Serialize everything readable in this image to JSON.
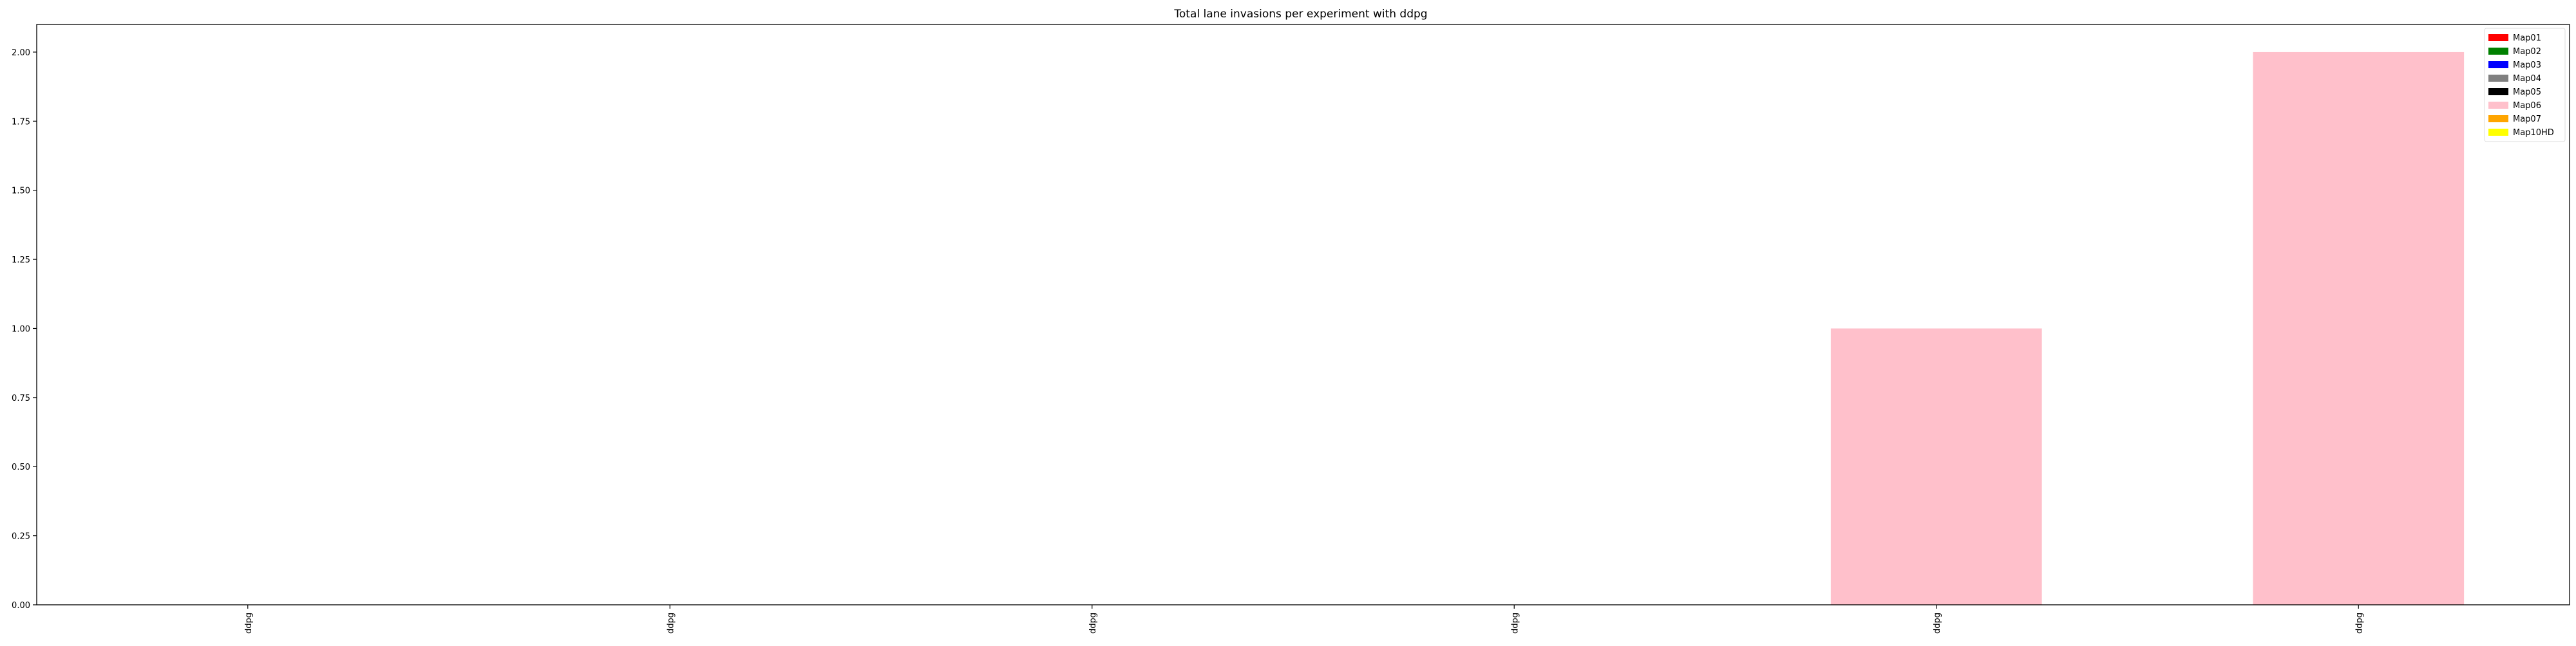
{
  "chart_data": {
    "type": "bar",
    "title": "Total lane invasions per experiment with ddpg",
    "xlabel": "",
    "ylabel": "",
    "categories": [
      "ddpg",
      "ddpg",
      "ddpg",
      "ddpg",
      "ddpg",
      "ddpg"
    ],
    "ylim": [
      0,
      2.1
    ],
    "yticks": [
      "0.00",
      "0.25",
      "0.50",
      "0.75",
      "1.00",
      "1.25",
      "1.50",
      "1.75",
      "2.00"
    ],
    "grid": false,
    "legend_position": "top-right",
    "stacked": true,
    "series": [
      {
        "name": "Map01",
        "color": "#ff0000",
        "values": [
          0,
          0,
          0,
          0,
          0,
          0
        ]
      },
      {
        "name": "Map02",
        "color": "#008000",
        "values": [
          0,
          0,
          0,
          0,
          0,
          0
        ]
      },
      {
        "name": "Map03",
        "color": "#0000ff",
        "values": [
          0,
          0,
          0,
          0,
          0,
          0
        ]
      },
      {
        "name": "Map04",
        "color": "#808080",
        "values": [
          0,
          0,
          0,
          0,
          0,
          0
        ]
      },
      {
        "name": "Map05",
        "color": "#000000",
        "values": [
          0,
          0,
          0,
          0,
          0,
          0
        ]
      },
      {
        "name": "Map06",
        "color": "#ffc0cb",
        "values": [
          0,
          0,
          0,
          0,
          1,
          2
        ]
      },
      {
        "name": "Map07",
        "color": "#ffa500",
        "values": [
          0,
          0,
          0,
          0,
          0,
          0
        ]
      },
      {
        "name": "Map10HD",
        "color": "#ffff00",
        "values": [
          0,
          0,
          0,
          0,
          0,
          0
        ]
      }
    ]
  }
}
